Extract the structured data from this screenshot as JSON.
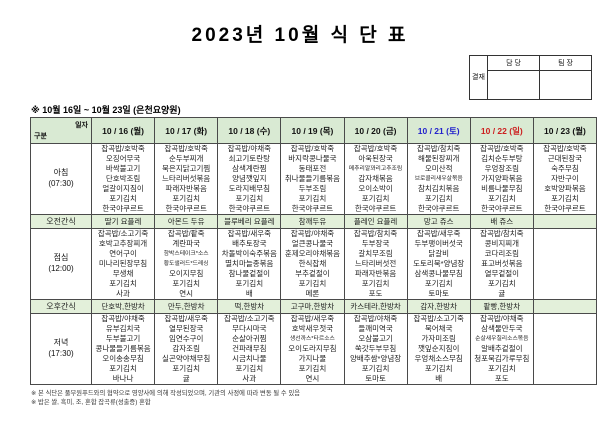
{
  "title": "2023년  10월  식 단 표",
  "approval": {
    "stamp_label": "결재",
    "col1": "담 당",
    "col2": "팀 장"
  },
  "subtitle": "※  10월  16일  ~  10월  23일  (은천요양원)",
  "colors": {
    "header_green": "#d9ead3",
    "snack_green": "#e3f0da",
    "saturday_blue": "#2323cc",
    "sunday_red": "#cc1f1f",
    "default_text": "#111111"
  },
  "table": {
    "corner": {
      "top": "일자",
      "bottom": "구분"
    },
    "dates": [
      {
        "label": "10 / 16 (월)"
      },
      {
        "label": "10 / 17 (화)"
      },
      {
        "label": "10 / 18 (수)"
      },
      {
        "label": "10 / 19 (목)"
      },
      {
        "label": "10 / 20 (금)"
      },
      {
        "label": "10 / 21 (토)",
        "color": "#2323cc"
      },
      {
        "label": "10 / 22 (일)",
        "color": "#cc1f1f"
      },
      {
        "label": "10 / 23 (월)"
      }
    ],
    "rows": [
      {
        "type": "meal",
        "label_lines": [
          "아침",
          "(07:30)"
        ],
        "cells": [
          [
            "잡곡밥/호박죽",
            "오징어무국",
            "바싹불고기",
            "단호박조림",
            "얼갈이지짐이",
            "포기김치",
            "한국야쿠르트"
          ],
          [
            "잡곡밥/호박죽",
            "순두부찌개",
            "묵은지닭고기찜",
            "느타리버섯볶음",
            "파래자반볶음",
            "포기김치",
            "한국야쿠르트"
          ],
          [
            "잡곡밥/야채죽",
            "쇠고기토란탕",
            "삼색계란찜",
            "양념깻잎지",
            "도라지배무침",
            "포기김치",
            "한국야쿠르트"
          ],
          [
            "잡곡밥/호박죽",
            "바지락콩나물국",
            "동태포전",
            "취나물들기름볶음",
            "두부조림",
            "포기김치",
            "한국야쿠르트"
          ],
          [
            "잡곡밥/호박죽",
            "아욱된장국",
            "메추리알꽈리고추조림",
            "감자채볶음",
            "오이소박이",
            "포기김치",
            "한국야쿠르트"
          ],
          [
            "잡곡밥/참치죽",
            "해물된장찌개",
            "오미산적",
            "브로콜리새우살볶음",
            "참치김치볶음",
            "포기김치",
            "한국야쿠르트"
          ],
          [
            "잡곡밥/호박죽",
            "김치순두부탕",
            "우엉장조림",
            "가지양파볶음",
            "비름나물무침",
            "포기김치",
            "한국야쿠르트"
          ],
          [
            "잡곡밥/호박죽",
            "근대된장국",
            "숙주무침",
            "자반구이",
            "호박양파볶음",
            "포기김치",
            "한국야쿠르트"
          ]
        ]
      },
      {
        "type": "snack",
        "label_lines": [
          "오전간식"
        ],
        "cells": [
          "딸기 요플레",
          "아몬드 두유",
          "블루베리 요플레",
          "참깨두유",
          "플레인 요플레",
          "망고 쥬스",
          "배 쥬스",
          ""
        ]
      },
      {
        "type": "meal",
        "label_lines": [
          "점심",
          "(12:00)"
        ],
        "cells": [
          [
            "잡곡밥/소고기죽",
            "호박고추장찌개",
            "연어구이",
            "미나리된장무침",
            "무생채",
            "포기김치",
            "사과"
          ],
          [
            "잡곡밥/팥죽",
            "계란파국",
            "함박스테이크*소스",
            "황도샐러드*드레싱",
            "오이지무침",
            "포기김치",
            "연시"
          ],
          [
            "잡곡밥/새우죽",
            "배추토장국",
            "차돌박이숙주볶음",
            "멸치마늘종볶음",
            "참나물겉절이",
            "포기김치",
            "배"
          ],
          [
            "잡곡밥/야채죽",
            "얼큰콩나물국",
            "훈제오리야채볶음",
            "한식잡채",
            "부추겉절이",
            "포기김치",
            "메론"
          ],
          [
            "잡곡밥/참치죽",
            "두부장국",
            "갈치무조림",
            "느타리버섯전",
            "파래자반볶음",
            "포기김치",
            "포도"
          ],
          [
            "잡곡밥/새우죽",
            "두부팽이버섯국",
            "닭갈비",
            "도토리묵*양념장",
            "삼색콩나물무침",
            "포기김치",
            "토마토"
          ],
          [
            "잡곡밥/참치죽",
            "콩비지찌개",
            "코다리조림",
            "표고버섯볶음",
            "열무겉절이",
            "포기김치",
            "귤"
          ],
          []
        ]
      },
      {
        "type": "snack",
        "label_lines": [
          "오후간식"
        ],
        "cells": [
          "단호박,한방차",
          "만두,한방차",
          "떡,한방차",
          "고구마,한방차",
          "카스테라,한방차",
          "감자,한방차",
          "팥빵,한방차",
          ""
        ]
      },
      {
        "type": "meal",
        "label_lines": [
          "저녁",
          "(17:30)"
        ],
        "cells": [
          [
            "잡곡밥/야채죽",
            "유부김치국",
            "두부불고기",
            "콩나물들기름볶음",
            "오이송송무침",
            "포기김치",
            "바나나"
          ],
          [
            "잡곡밥/새우죽",
            "열무된장국",
            "임연수구이",
            "감자조림",
            "실곤약야채무침",
            "포기김치",
            "귤"
          ],
          [
            "잡곡밥/소고기죽",
            "무다시마국",
            "순살아귀찜",
            "건파래무침",
            "시금치나물",
            "포기김치",
            "사과"
          ],
          [
            "잡곡밥/새우죽",
            "호박새우젓국",
            "생선까스*타르소스",
            "오이도라지무침",
            "가지나물",
            "포기김치",
            "연시"
          ],
          [
            "잡곡밥/야채죽",
            "들깨미역국",
            "오삼불고기",
            "쑥갓두부무침",
            "양배추쌈*양념장",
            "포기김치",
            "토마토"
          ],
          [
            "잡곡밥/소고기죽",
            "북어채국",
            "가자미조림",
            "깻잎순지짐이",
            "우엉채소스무침",
            "포기김치",
            "배"
          ],
          [
            "잡곡밥/야채죽",
            "삼색물만두국",
            "순살새우칠리소스볶음",
            "알배추겉절이",
            "청포묵김가루무침",
            "포기김치",
            "포도"
          ],
          []
        ]
      }
    ]
  },
  "footnotes": [
    "※ 본 식단은 풀무원푸드와의 협약으로 영양사에 의해 작성되었으며, 기관의 사정에 따라 변동 될 수 있음",
    "※ 밥은 쌀, 흑미, 조, 혼합 잡곡류(성출증) 혼합"
  ]
}
